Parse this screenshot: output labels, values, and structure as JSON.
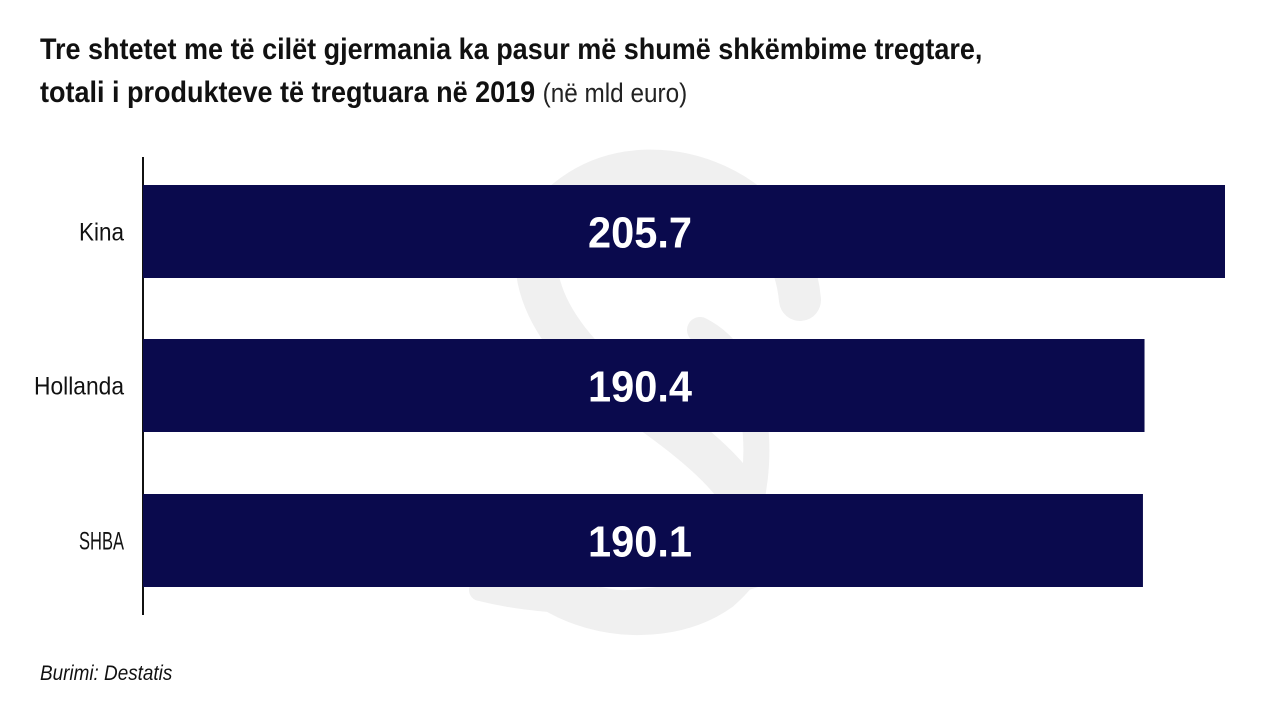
{
  "title": {
    "main_line1": "Tre shtetet me të cilët gjermania ka pasur më shumë shkëmbime tregtare,",
    "main_line2": "totali i produkteve të tregtuara në 2019",
    "unit": "(në mld euro)"
  },
  "source": "Burimi: Destatis",
  "colors": {
    "bar": "#0a0a4d",
    "watermark": "#f0f0f0"
  },
  "chart_data": {
    "type": "bar",
    "orientation": "horizontal",
    "categories": [
      "Kina",
      "Hollanda",
      "SHBA"
    ],
    "values": [
      205.7,
      190.4,
      190.1
    ],
    "data_labels": [
      "205.7",
      "190.4",
      "190.1"
    ],
    "title": "Tre shtetet me të cilët gjermania ka pasur më shumë shkëmbime tregtare, totali i produkteve të tregtuara në 2019",
    "unit": "(në mld euro)",
    "xlabel": "",
    "ylabel": "",
    "xlim": [
      0,
      205.7
    ],
    "grid": false,
    "legend": "none"
  }
}
